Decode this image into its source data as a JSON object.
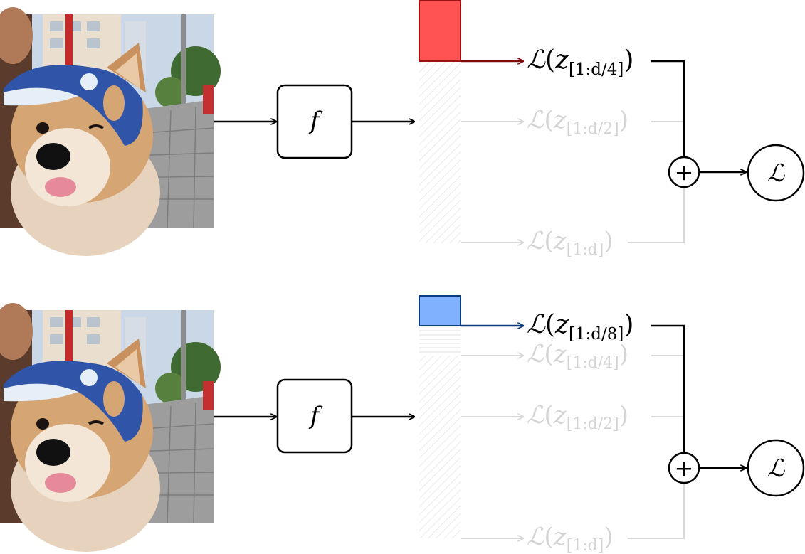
{
  "rows": [
    {
      "encoder_label": "f",
      "active_loss": {
        "script": "ℒ",
        "var": "z",
        "sub": "[1:d/4]",
        "color": "#7a0c0c"
      },
      "faded_losses": [
        {
          "script": "ℒ",
          "var": "z",
          "sub": "[1:d/2]"
        },
        {
          "script": "ℒ",
          "var": "z",
          "sub": "[1:d]"
        }
      ],
      "block_fill": "#ff5252",
      "block_border": "#a01010",
      "sum_symbol": "+",
      "output_label": "ℒ"
    },
    {
      "encoder_label": "f",
      "active_loss": {
        "script": "ℒ",
        "var": "z",
        "sub": "[1:d/8]",
        "color": "#0d3a7a"
      },
      "faded_losses": [
        {
          "script": "ℒ",
          "var": "z",
          "sub": "[1:d/4]"
        },
        {
          "script": "ℒ",
          "var": "z",
          "sub": "[1:d/2]"
        },
        {
          "script": "ℒ",
          "var": "z",
          "sub": "[1:d]"
        }
      ],
      "block_fill": "#7fb1ff",
      "block_border": "#0d3a7a",
      "sum_symbol": "+",
      "output_label": "ℒ"
    }
  ]
}
